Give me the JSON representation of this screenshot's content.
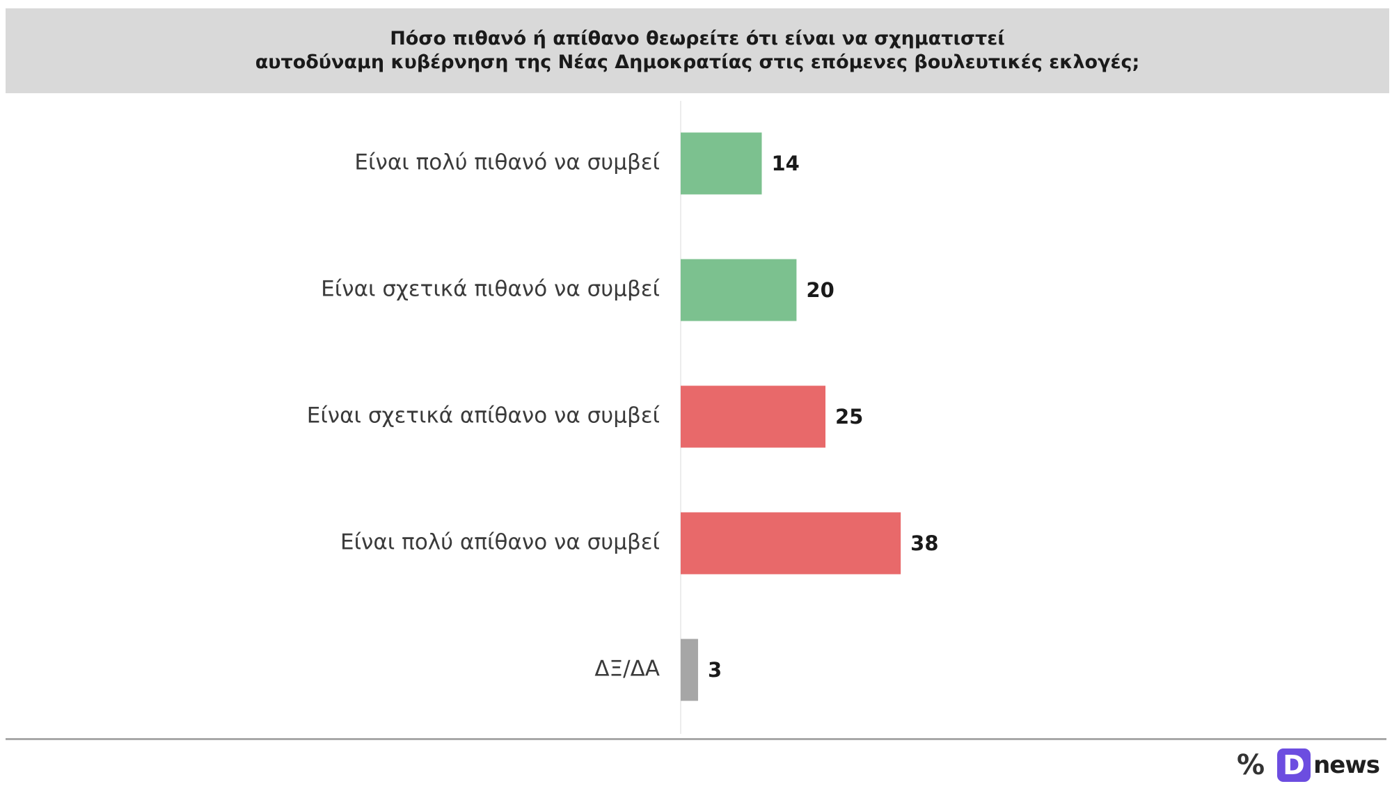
{
  "chart_data": {
    "type": "bar",
    "orientation": "horizontal",
    "title_lines": [
      "Πόσο πιθανό ή απίθανο θεωρείτε ότι είναι να σχηματιστεί",
      "αυτοδύναμη κυβέρνηση της Νέας Δημοκρατίας στις επόμενες βουλευτικές εκλογές;"
    ],
    "categories": [
      "Είναι πολύ πιθανό να συμβεί",
      "Είναι σχετικά πιθανό να συμβεί",
      "Είναι σχετικά απίθανο να συμβεί",
      "Είναι πολύ απίθανο να συμβεί",
      "ΔΞ/ΔΑ"
    ],
    "values": [
      14,
      20,
      25,
      38,
      3
    ],
    "colors": [
      "#7cc18f",
      "#7cc18f",
      "#e8696a",
      "#e8696a",
      "#a6a6a6"
    ],
    "xlim": [
      0,
      100
    ],
    "grid": false,
    "legend": false
  },
  "brand": {
    "percent_icon": "%",
    "badge_letter": "D",
    "word": "news"
  }
}
